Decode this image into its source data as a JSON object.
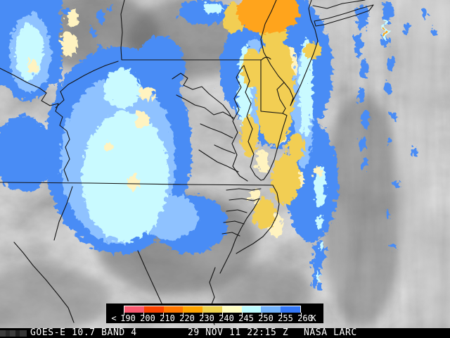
{
  "status_bar": {
    "product": "GOES-E 10.7 BAND 4",
    "timestamp": "29 NOV 11 22:15 Z",
    "credit": "NASA LARC"
  },
  "colorbar": {
    "prefix": "<",
    "unit": "K",
    "tick_labels": [
      "190",
      "200",
      "210",
      "220",
      "230",
      "240",
      "245",
      "250",
      "255",
      "260"
    ],
    "segments": [
      {
        "range": "<190-200",
        "color": "#fa5a70"
      },
      {
        "range": "200-210",
        "color": "#f94300"
      },
      {
        "range": "210-220",
        "color": "#ff7700"
      },
      {
        "range": "220-230",
        "color": "#ffa500"
      },
      {
        "range": "230-240",
        "color": "#eed34e"
      },
      {
        "range": "240-245",
        "color": "#ffffc2"
      },
      {
        "range": "245-250",
        "color": "#bdfcff"
      },
      {
        "range": "250-255",
        "color": "#74b4fc"
      },
      {
        "range": "255-260",
        "color": "#3478f8"
      }
    ]
  },
  "map": {
    "type": "infrared-satellite-image",
    "region": "Mid-Atlantic United States",
    "palette": {
      "bg": "#8e8e8e",
      "blue": "#4a8cf5",
      "lblue": "#8fc2ff",
      "cyan": "#c9faff",
      "cream": "#fff3c0",
      "gold": "#f2ce52",
      "orange": "#ffa41e",
      "border": "#141414"
    }
  }
}
